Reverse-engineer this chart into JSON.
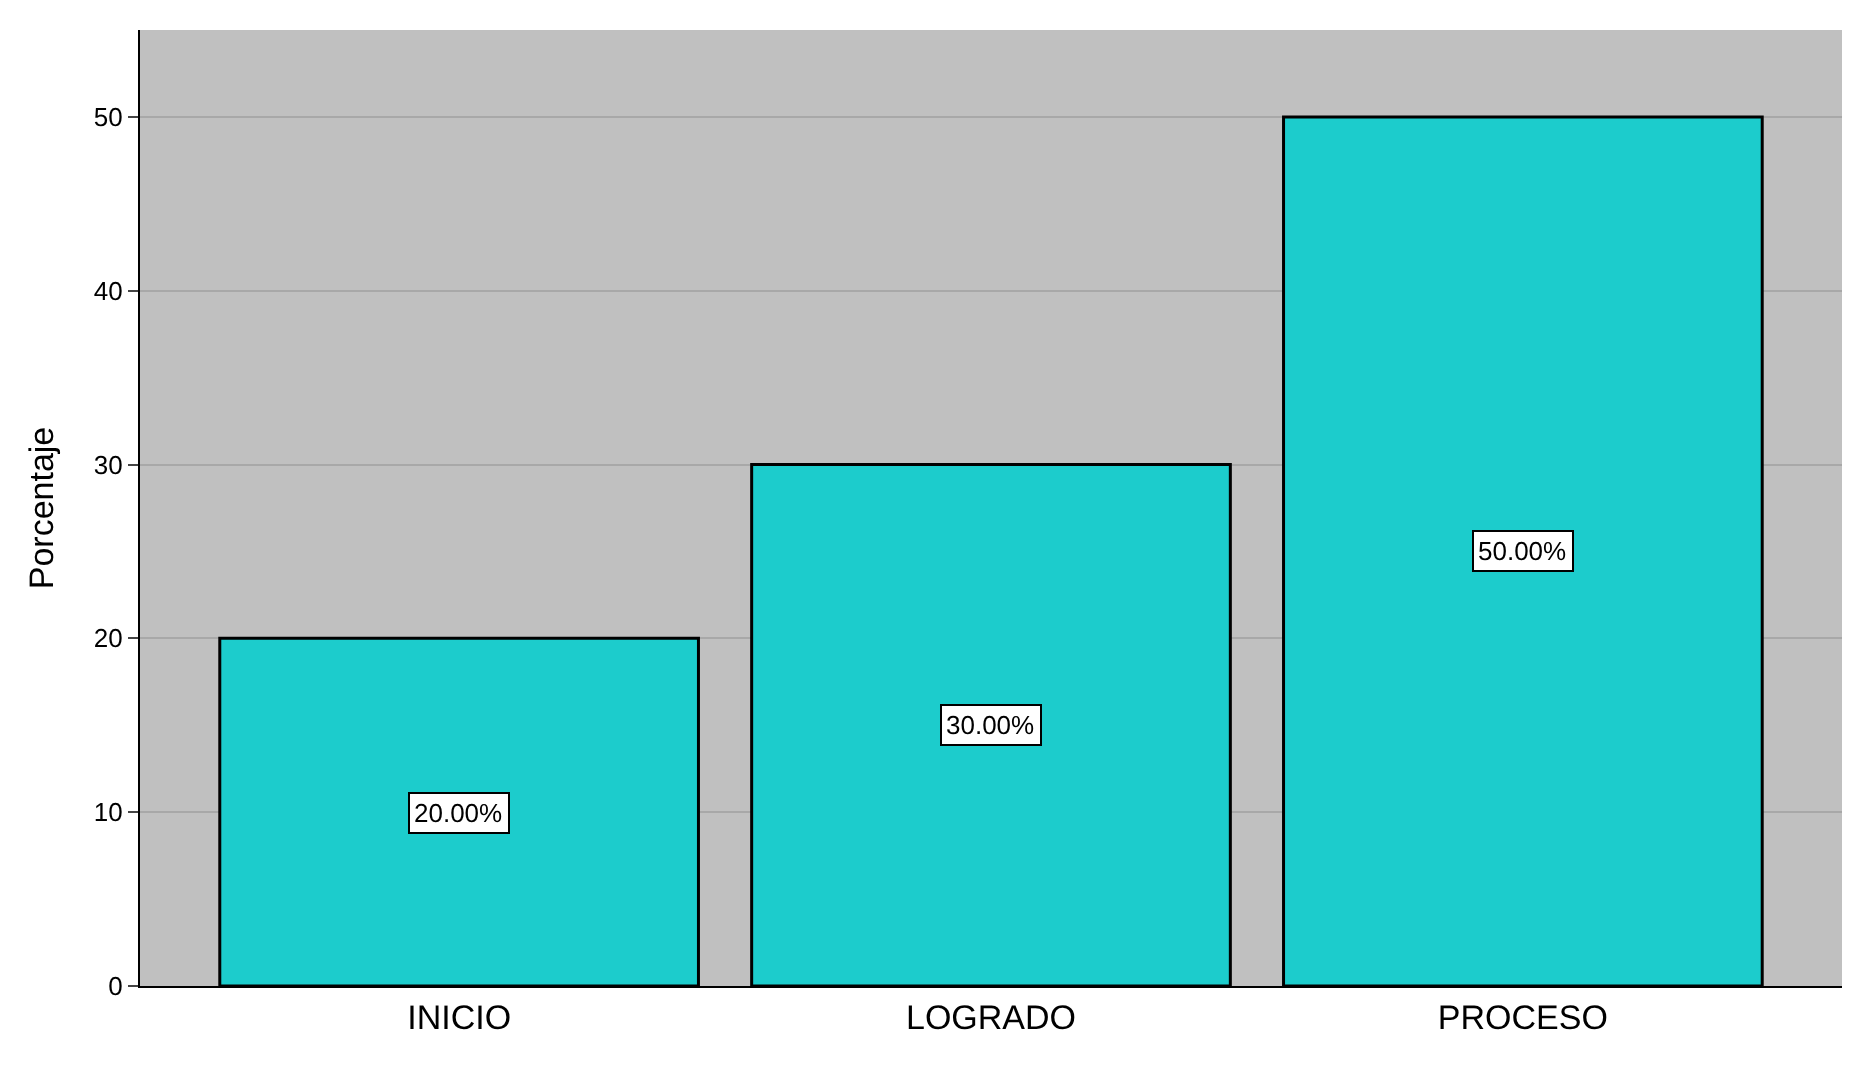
{
  "chart_data": {
    "type": "bar",
    "ylabel": "Porcentaje",
    "categories": [
      "INICIO",
      "LOGRADO",
      "PROCESO"
    ],
    "values": [
      20,
      30,
      50
    ],
    "color": "#1ccccc",
    "value_labels": [
      "20.00%",
      "30.00%",
      "50.00%"
    ],
    "ylim": [
      0,
      55
    ],
    "yticks": [
      0,
      10,
      20,
      30,
      40,
      50
    ],
    "grid": "y",
    "legend": false
  }
}
